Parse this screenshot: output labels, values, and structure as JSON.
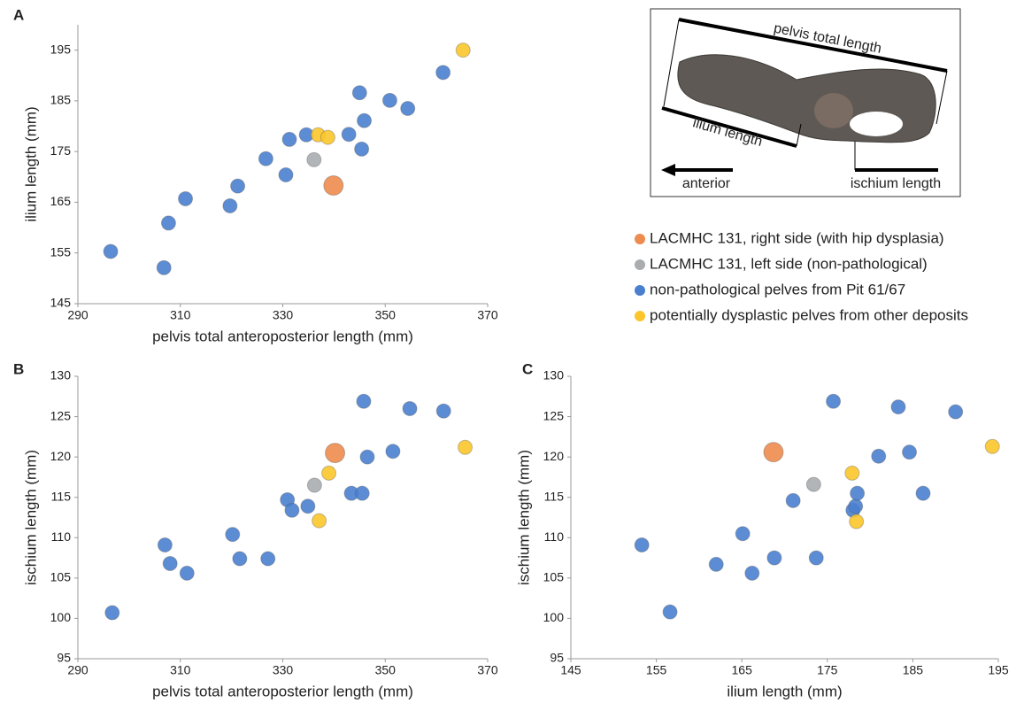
{
  "chart_data": [
    {
      "type": "scatter",
      "panel": "A",
      "x_label": "pelvis total anteroposterior length (mm)",
      "y_label": "ilium length (mm)",
      "xlim": [
        290,
        370
      ],
      "xticks": [
        290,
        310,
        330,
        350,
        370
      ],
      "ylim": [
        145,
        200
      ],
      "yticks": [
        145,
        155,
        165,
        175,
        185,
        195
      ],
      "series": [
        {
          "name": "LACMHC 131, right side (with hip dysplasia)",
          "color": "#ee8b4e",
          "marker_size": 11,
          "x": [
            339.9
          ],
          "values": [
            168.3
          ]
        },
        {
          "name": "LACMHC 131, left side (non-pathological)",
          "color": "#a9adb0",
          "marker_size": 8,
          "x": [
            336.1
          ],
          "values": [
            173.4
          ]
        },
        {
          "name": "non-pathological pelves from Pit 61/67",
          "color": "#4a7fcf",
          "marker_size": 8,
          "x": [
            296.4,
            306.8,
            307.7,
            311.0,
            319.7,
            321.2,
            326.7,
            330.6,
            331.3,
            334.6,
            342.9,
            345.0,
            345.4,
            345.9,
            350.9,
            354.4,
            361.3
          ],
          "values": [
            155.3,
            152.1,
            160.9,
            165.7,
            164.3,
            168.2,
            173.6,
            170.4,
            177.4,
            178.3,
            178.4,
            186.6,
            175.5,
            181.1,
            185.1,
            183.5,
            190.6
          ]
        },
        {
          "name": "potentially dysplastic pelves from other deposits",
          "color": "#fbc52b",
          "marker_size": 8,
          "x": [
            336.9,
            338.8,
            365.2
          ],
          "values": [
            178.3,
            177.8,
            195.0
          ]
        }
      ]
    },
    {
      "type": "scatter",
      "panel": "B",
      "x_label": "pelvis total anteroposterior length (mm)",
      "y_label": "ischium length (mm)",
      "xlim": [
        290,
        370
      ],
      "xticks": [
        290,
        310,
        330,
        350,
        370
      ],
      "ylim": [
        95,
        130
      ],
      "yticks": [
        95,
        100,
        105,
        110,
        115,
        120,
        125,
        130
      ],
      "series": [
        {
          "color": "#ee8b4e",
          "marker_size": 11,
          "x": [
            340.2
          ],
          "values": [
            120.5
          ]
        },
        {
          "color": "#a9adb0",
          "marker_size": 8,
          "x": [
            336.2
          ],
          "values": [
            116.5
          ]
        },
        {
          "color": "#4a7fcf",
          "marker_size": 8,
          "x": [
            296.7,
            307.0,
            308.0,
            311.3,
            320.2,
            321.6,
            327.1,
            330.9,
            331.8,
            334.9,
            343.4,
            345.5,
            345.8,
            346.5,
            351.5,
            354.8,
            361.4
          ],
          "values": [
            100.7,
            109.1,
            106.8,
            105.6,
            110.4,
            107.4,
            107.4,
            114.7,
            113.4,
            113.9,
            115.5,
            115.5,
            126.9,
            120.0,
            120.7,
            126.0,
            125.7
          ]
        },
        {
          "color": "#fbc52b",
          "marker_size": 8,
          "x": [
            339.0,
            337.1,
            365.6
          ],
          "values": [
            118.0,
            112.1,
            121.2
          ]
        }
      ]
    },
    {
      "type": "scatter",
      "panel": "C",
      "x_label": "ilium length (mm)",
      "y_label": "ischium length (mm)",
      "xlim": [
        145,
        195
      ],
      "xticks": [
        145,
        155,
        165,
        175,
        185,
        195
      ],
      "ylim": [
        95,
        130
      ],
      "yticks": [
        95,
        100,
        105,
        110,
        115,
        120,
        125,
        130
      ],
      "series": [
        {
          "color": "#ee8b4e",
          "marker_size": 11,
          "x": [
            168.7
          ],
          "values": [
            120.6
          ]
        },
        {
          "color": "#a9adb0",
          "marker_size": 8,
          "x": [
            173.4
          ],
          "values": [
            116.6
          ]
        },
        {
          "color": "#4a7fcf",
          "marker_size": 8,
          "x": [
            153.3,
            156.6,
            162.0,
            165.1,
            166.2,
            168.8,
            171.0,
            173.7,
            175.7,
            178.0,
            178.3,
            178.5,
            181.0,
            183.3,
            184.6,
            186.2,
            190.0
          ],
          "values": [
            109.1,
            100.8,
            106.7,
            110.5,
            105.6,
            107.5,
            114.6,
            107.5,
            126.9,
            113.4,
            113.9,
            115.5,
            120.1,
            126.2,
            120.6,
            115.5,
            125.6
          ]
        },
        {
          "color": "#fbc52b",
          "marker_size": 8,
          "x": [
            177.9,
            178.4,
            194.3
          ],
          "values": [
            118.0,
            112.0,
            121.3
          ]
        }
      ]
    }
  ],
  "photo": {
    "labels": {
      "pelvis": "pelvis total length",
      "ilium": "ilium length",
      "anterior": "anterior",
      "ischium": "ischium length"
    }
  }
}
